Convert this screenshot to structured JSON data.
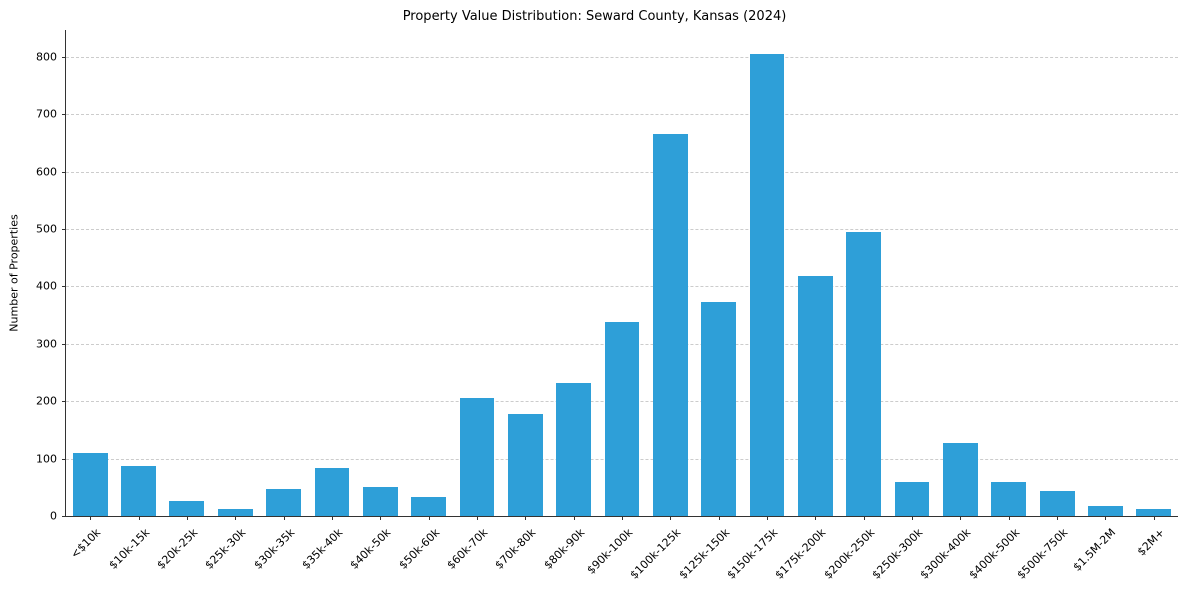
{
  "chart_data": {
    "type": "bar",
    "title": "Property Value Distribution: Seward County, Kansas (2024)",
    "xlabel": "",
    "ylabel": "Number of Properties",
    "categories": [
      "<$10k",
      "$10k-15k",
      "$20k-25k",
      "$25k-30k",
      "$30k-35k",
      "$35k-40k",
      "$40k-50k",
      "$50k-60k",
      "$60k-70k",
      "$70k-80k",
      "$80k-90k",
      "$90k-100k",
      "$100k-125k",
      "$125k-150k",
      "$150k-175k",
      "$175k-200k",
      "$200k-250k",
      "$250k-300k",
      "$300k-400k",
      "$400k-500k",
      "$500k-750k",
      "$1.5M-2M",
      "$2M+"
    ],
    "values": [
      110,
      87,
      26,
      12,
      47,
      84,
      50,
      33,
      206,
      178,
      232,
      338,
      665,
      373,
      806,
      418,
      495,
      59,
      127,
      59,
      44,
      17,
      12
    ],
    "ylim": [
      0,
      800
    ],
    "yticks": [
      0,
      100,
      200,
      300,
      400,
      500,
      600,
      700,
      800
    ],
    "bar_color": "#2E9FD8",
    "grid": "horizontal-dashed",
    "legend": "none"
  }
}
